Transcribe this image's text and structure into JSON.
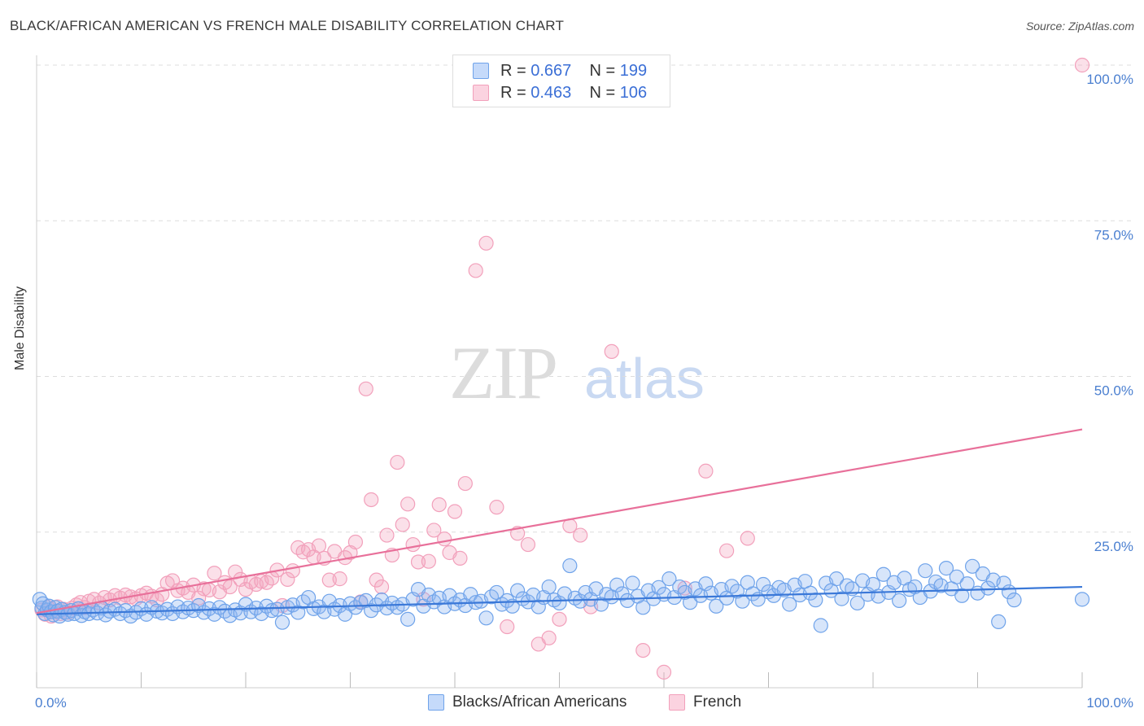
{
  "title": "BLACK/AFRICAN AMERICAN VS FRENCH MALE DISABILITY CORRELATION CHART",
  "source": "Source: ZipAtlas.com",
  "watermark": {
    "zip": "ZIP",
    "atlas": "atlas"
  },
  "legend": {
    "rows": [
      {
        "r_label": "R =",
        "r_value": "0.667",
        "n_label": "N =",
        "n_value": "199",
        "color": "#8ab4f0"
      },
      {
        "r_label": "R =",
        "r_value": "0.463",
        "n_label": "N =",
        "n_value": "106",
        "color": "#f4a6c0"
      }
    ]
  },
  "bottom_legend": [
    {
      "label": "Blacks/African Americans",
      "color": "#8ab4f0"
    },
    {
      "label": "French",
      "color": "#f4a6c0"
    }
  ],
  "colors": {
    "blue": "#6fa3ea",
    "blue_line": "#3a78d8",
    "pink": "#f2a0bb",
    "pink_line": "#e8709a",
    "grid": "#dddddd",
    "axis_text": "#4a7fd0"
  },
  "chart_data": {
    "type": "scatter",
    "title": "BLACK/AFRICAN AMERICAN VS FRENCH MALE DISABILITY CORRELATION CHART",
    "xlabel": "",
    "ylabel": "Male Disability",
    "xlim": [
      0,
      100
    ],
    "ylim": [
      0,
      100
    ],
    "x_tick_labels": [
      "0.0%",
      "100.0%"
    ],
    "y_tick_labels": [
      "25.0%",
      "50.0%",
      "75.0%",
      "100.0%"
    ],
    "y_ticks": [
      25,
      50,
      75,
      100
    ],
    "grid": true,
    "legend_position": "top-center",
    "series": [
      {
        "name": "Blacks/African Americans",
        "trend": {
          "x": [
            0,
            100
          ],
          "y": [
            11.8,
            16.2
          ]
        },
        "points": [
          [
            0.3,
            14.2
          ],
          [
            0.5,
            12.8
          ],
          [
            0.6,
            13.5
          ],
          [
            0.8,
            11.9
          ],
          [
            1,
            12.5
          ],
          [
            1.2,
            13.1
          ],
          [
            1.4,
            12.2
          ],
          [
            1.6,
            11.7
          ],
          [
            1.8,
            12.9
          ],
          [
            2,
            12.3
          ],
          [
            2.2,
            11.5
          ],
          [
            2.4,
            12.6
          ],
          [
            2.7,
            12.1
          ],
          [
            3,
            11.8
          ],
          [
            3.3,
            12.4
          ],
          [
            3.6,
            11.9
          ],
          [
            4,
            12.7
          ],
          [
            4.3,
            11.6
          ],
          [
            4.6,
            12.2
          ],
          [
            5,
            11.9
          ],
          [
            5.4,
            12.5
          ],
          [
            5.8,
            12.0
          ],
          [
            6.2,
            12.8
          ],
          [
            6.6,
            11.7
          ],
          [
            7,
            12.3
          ],
          [
            7.5,
            12.6
          ],
          [
            8,
            11.9
          ],
          [
            8.5,
            12.4
          ],
          [
            9,
            11.5
          ],
          [
            9.5,
            12.1
          ],
          [
            10,
            12.7
          ],
          [
            10.5,
            11.8
          ],
          [
            11,
            12.9
          ],
          [
            11.5,
            12.3
          ],
          [
            12,
            12.0
          ],
          [
            12.5,
            12.6
          ],
          [
            13,
            11.9
          ],
          [
            13.5,
            13.0
          ],
          [
            14,
            12.2
          ],
          [
            14.5,
            12.8
          ],
          [
            15,
            12.4
          ],
          [
            15.5,
            13.2
          ],
          [
            16,
            12.1
          ],
          [
            16.5,
            12.7
          ],
          [
            17,
            11.8
          ],
          [
            17.5,
            12.9
          ],
          [
            18,
            12.3
          ],
          [
            18.5,
            11.6
          ],
          [
            19,
            12.5
          ],
          [
            19.5,
            12.0
          ],
          [
            20,
            13.4
          ],
          [
            20.5,
            12.2
          ],
          [
            21,
            12.8
          ],
          [
            21.5,
            11.9
          ],
          [
            22,
            13.1
          ],
          [
            22.5,
            12.4
          ],
          [
            23,
            12.6
          ],
          [
            23.5,
            10.5
          ],
          [
            24,
            12.9
          ],
          [
            24.5,
            13.3
          ],
          [
            25,
            12.1
          ],
          [
            25.5,
            13.8
          ],
          [
            26,
            14.5
          ],
          [
            26.5,
            12.7
          ],
          [
            27,
            13.0
          ],
          [
            27.5,
            12.2
          ],
          [
            28,
            13.9
          ],
          [
            28.5,
            12.6
          ],
          [
            29,
            13.2
          ],
          [
            29.5,
            11.8
          ],
          [
            30,
            13.5
          ],
          [
            30.5,
            12.9
          ],
          [
            31,
            13.7
          ],
          [
            31.5,
            14.0
          ],
          [
            32,
            12.4
          ],
          [
            32.5,
            13.3
          ],
          [
            33,
            14.1
          ],
          [
            33.5,
            12.8
          ],
          [
            34,
            13.6
          ],
          [
            34.5,
            12.9
          ],
          [
            35,
            13.4
          ],
          [
            35.5,
            11.0
          ],
          [
            36,
            14.2
          ],
          [
            36.5,
            15.8
          ],
          [
            37,
            13.1
          ],
          [
            37.5,
            14.9
          ],
          [
            38,
            13.8
          ],
          [
            38.5,
            14.4
          ],
          [
            39,
            13.0
          ],
          [
            39.5,
            14.8
          ],
          [
            40,
            13.5
          ],
          [
            40.5,
            14.1
          ],
          [
            41,
            13.2
          ],
          [
            41.5,
            15.0
          ],
          [
            42,
            13.7
          ],
          [
            42.5,
            13.9
          ],
          [
            43,
            11.2
          ],
          [
            43.5,
            14.6
          ],
          [
            44,
            15.3
          ],
          [
            44.5,
            13.4
          ],
          [
            45,
            14.0
          ],
          [
            45.5,
            13.1
          ],
          [
            46,
            15.6
          ],
          [
            46.5,
            14.3
          ],
          [
            47,
            13.8
          ],
          [
            47.5,
            14.9
          ],
          [
            48,
            13.0
          ],
          [
            48.5,
            14.5
          ],
          [
            49,
            16.2
          ],
          [
            49.5,
            14.1
          ],
          [
            50,
            13.6
          ],
          [
            50.5,
            15.1
          ],
          [
            51,
            19.6
          ],
          [
            51.5,
            14.4
          ],
          [
            52,
            13.9
          ],
          [
            52.5,
            15.3
          ],
          [
            53,
            14.2
          ],
          [
            53.5,
            15.9
          ],
          [
            54,
            13.4
          ],
          [
            54.5,
            15.0
          ],
          [
            55,
            14.6
          ],
          [
            55.5,
            16.5
          ],
          [
            56,
            15.1
          ],
          [
            56.5,
            14.0
          ],
          [
            57,
            16.8
          ],
          [
            57.5,
            14.7
          ],
          [
            58,
            12.9
          ],
          [
            58.5,
            15.6
          ],
          [
            59,
            14.3
          ],
          [
            59.5,
            16.1
          ],
          [
            60,
            15.0
          ],
          [
            60.5,
            17.5
          ],
          [
            61,
            14.5
          ],
          [
            61.5,
            16.2
          ],
          [
            62,
            15.3
          ],
          [
            62.5,
            13.7
          ],
          [
            63,
            15.9
          ],
          [
            63.5,
            14.8
          ],
          [
            64,
            16.7
          ],
          [
            64.5,
            15.2
          ],
          [
            65,
            13.1
          ],
          [
            65.5,
            15.8
          ],
          [
            66,
            14.4
          ],
          [
            66.5,
            16.3
          ],
          [
            67,
            15.5
          ],
          [
            67.5,
            13.9
          ],
          [
            68,
            16.9
          ],
          [
            68.5,
            15.1
          ],
          [
            69,
            14.2
          ],
          [
            69.5,
            16.6
          ],
          [
            70,
            15.4
          ],
          [
            70.5,
            14.8
          ],
          [
            71,
            16.1
          ],
          [
            71.5,
            15.7
          ],
          [
            72,
            13.4
          ],
          [
            72.5,
            16.5
          ],
          [
            73,
            14.9
          ],
          [
            73.5,
            17.1
          ],
          [
            74,
            15.2
          ],
          [
            74.5,
            14.1
          ],
          [
            75,
            10.0
          ],
          [
            75.5,
            16.8
          ],
          [
            76,
            15.6
          ],
          [
            76.5,
            17.5
          ],
          [
            77,
            14.3
          ],
          [
            77.5,
            16.4
          ],
          [
            78,
            15.9
          ],
          [
            78.5,
            13.6
          ],
          [
            79,
            17.2
          ],
          [
            79.5,
            15.0
          ],
          [
            80,
            16.6
          ],
          [
            80.5,
            14.7
          ],
          [
            81,
            18.2
          ],
          [
            81.5,
            15.3
          ],
          [
            82,
            16.9
          ],
          [
            82.5,
            14.0
          ],
          [
            83,
            17.6
          ],
          [
            83.5,
            15.8
          ],
          [
            84,
            16.2
          ],
          [
            84.5,
            14.5
          ],
          [
            85,
            18.8
          ],
          [
            85.5,
            15.5
          ],
          [
            86,
            17.0
          ],
          [
            86.5,
            16.4
          ],
          [
            87,
            19.2
          ],
          [
            87.5,
            15.9
          ],
          [
            88,
            17.8
          ],
          [
            88.5,
            14.8
          ],
          [
            89,
            16.7
          ],
          [
            89.5,
            19.5
          ],
          [
            90,
            15.2
          ],
          [
            90.5,
            18.3
          ],
          [
            91,
            16.0
          ],
          [
            91.5,
            17.3
          ],
          [
            92,
            10.6
          ],
          [
            92.5,
            16.8
          ],
          [
            93,
            15.4
          ],
          [
            93.5,
            14.1
          ],
          [
            100,
            14.2
          ]
        ]
      },
      {
        "name": "French",
        "trend": {
          "x": [
            0,
            100
          ],
          "y": [
            12.0,
            41.5
          ]
        },
        "points": [
          [
            0.5,
            12.5
          ],
          [
            0.8,
            11.8
          ],
          [
            1.1,
            12.9
          ],
          [
            1.4,
            11.5
          ],
          [
            1.7,
            12.2
          ],
          [
            2,
            13.0
          ],
          [
            2.3,
            11.9
          ],
          [
            2.6,
            12.6
          ],
          [
            3,
            12.1
          ],
          [
            3.4,
            12.8
          ],
          [
            3.8,
            13.3
          ],
          [
            4.2,
            13.7
          ],
          [
            4.6,
            12.9
          ],
          [
            5,
            13.9
          ],
          [
            5.5,
            14.2
          ],
          [
            6,
            13.6
          ],
          [
            6.5,
            14.5
          ],
          [
            7,
            14.1
          ],
          [
            7.5,
            14.8
          ],
          [
            8,
            14.4
          ],
          [
            8.5,
            14.9
          ],
          [
            9,
            14.6
          ],
          [
            9.5,
            14.3
          ],
          [
            10,
            14.8
          ],
          [
            10.5,
            15.2
          ],
          [
            11,
            14.7
          ],
          [
            11.5,
            14.1
          ],
          [
            12,
            15.0
          ],
          [
            12.5,
            16.8
          ],
          [
            13,
            17.2
          ],
          [
            13.5,
            15.6
          ],
          [
            14,
            16.0
          ],
          [
            14.5,
            15.3
          ],
          [
            15,
            16.5
          ],
          [
            15.5,
            14.4
          ],
          [
            16,
            15.9
          ],
          [
            16.5,
            15.7
          ],
          [
            17,
            18.4
          ],
          [
            17.5,
            15.4
          ],
          [
            18,
            16.9
          ],
          [
            18.5,
            16.2
          ],
          [
            19,
            18.6
          ],
          [
            19.5,
            17.4
          ],
          [
            20,
            15.8
          ],
          [
            20.5,
            17.0
          ],
          [
            21,
            16.6
          ],
          [
            21.5,
            17.1
          ],
          [
            22,
            16.9
          ],
          [
            22.5,
            17.6
          ],
          [
            23,
            18.9
          ],
          [
            23.5,
            13.2
          ],
          [
            24,
            17.4
          ],
          [
            24.5,
            18.8
          ],
          [
            25,
            22.5
          ],
          [
            25.5,
            21.8
          ],
          [
            26,
            22.2
          ],
          [
            26.5,
            21.0
          ],
          [
            27,
            22.8
          ],
          [
            27.5,
            20.8
          ],
          [
            28,
            17.3
          ],
          [
            28.5,
            21.9
          ],
          [
            29,
            17.5
          ],
          [
            29.5,
            20.9
          ],
          [
            30,
            21.7
          ],
          [
            30.5,
            23.4
          ],
          [
            31,
            13.8
          ],
          [
            31.5,
            48.0
          ],
          [
            32,
            30.2
          ],
          [
            32.5,
            17.3
          ],
          [
            33,
            16.2
          ],
          [
            33.5,
            24.5
          ],
          [
            34,
            21.3
          ],
          [
            34.5,
            36.2
          ],
          [
            35,
            26.2
          ],
          [
            35.5,
            29.5
          ],
          [
            36,
            23.0
          ],
          [
            36.5,
            20.2
          ],
          [
            37,
            14.2
          ],
          [
            37.5,
            20.3
          ],
          [
            38,
            25.3
          ],
          [
            38.5,
            29.4
          ],
          [
            39,
            23.9
          ],
          [
            39.5,
            21.7
          ],
          [
            40,
            28.3
          ],
          [
            40.5,
            20.8
          ],
          [
            41,
            32.8
          ],
          [
            42,
            67.0
          ],
          [
            43,
            71.4
          ],
          [
            44,
            29.0
          ],
          [
            45,
            9.8
          ],
          [
            46,
            24.8
          ],
          [
            47,
            23.0
          ],
          [
            48,
            7.0
          ],
          [
            49,
            8.0
          ],
          [
            50,
            11.0
          ],
          [
            51,
            26.0
          ],
          [
            52,
            24.5
          ],
          [
            53,
            13.0
          ],
          [
            55,
            54.0
          ],
          [
            58,
            6.0
          ],
          [
            60,
            2.5
          ],
          [
            62,
            16.0
          ],
          [
            64,
            34.8
          ],
          [
            66,
            22.0
          ],
          [
            68,
            24.0
          ],
          [
            100,
            100.0
          ]
        ]
      }
    ]
  }
}
